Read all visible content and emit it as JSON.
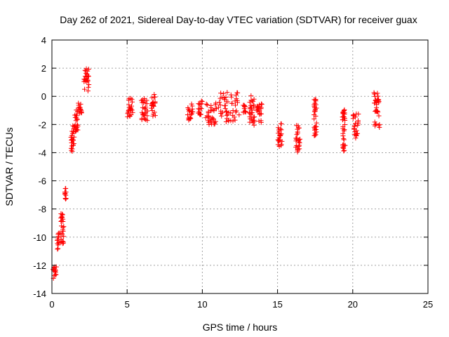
{
  "chart_data": {
    "type": "scatter",
    "title": "Day 262 of 2021, Sidereal Day-to-day VTEC variation (SDTVAR) for receiver guax",
    "xlabel": "GPS time / hours",
    "ylabel": "SDTVAR / TECUs",
    "xlim": [
      0,
      25
    ],
    "ylim": [
      -14,
      4
    ],
    "xticks": [
      0,
      5,
      10,
      15,
      20,
      25
    ],
    "yticks": [
      -14,
      -12,
      -10,
      -8,
      -6,
      -4,
      -2,
      0,
      2,
      4
    ],
    "grid": true,
    "marker": "+",
    "color": "#ff0000",
    "clusters": [
      {
        "x": [
          0.05,
          0.3
        ],
        "y": [
          -13.0,
          -12.0
        ]
      },
      {
        "x": [
          0.35,
          0.5
        ],
        "y": [
          -10.9,
          -9.7
        ]
      },
      {
        "x": [
          0.55,
          0.8
        ],
        "y": [
          -10.6,
          -8.3
        ]
      },
      {
        "x": [
          0.85,
          0.95
        ],
        "y": [
          -7.4,
          -6.5
        ]
      },
      {
        "x": [
          1.25,
          1.5
        ],
        "y": [
          -4.0,
          -2.0
        ]
      },
      {
        "x": [
          1.5,
          1.75
        ],
        "y": [
          -2.5,
          -0.8
        ]
      },
      {
        "x": [
          1.75,
          2.0
        ],
        "y": [
          -1.2,
          -0.3
        ]
      },
      {
        "x": [
          2.1,
          2.5
        ],
        "y": [
          0.3,
          2.0
        ]
      },
      {
        "x": [
          5.0,
          5.4
        ],
        "y": [
          -1.5,
          0.0
        ]
      },
      {
        "x": [
          5.9,
          6.4
        ],
        "y": [
          -1.8,
          -0.1
        ]
      },
      {
        "x": [
          6.6,
          6.9
        ],
        "y": [
          -1.4,
          0.2
        ]
      },
      {
        "x": [
          9.0,
          9.4
        ],
        "y": [
          -1.7,
          -0.4
        ]
      },
      {
        "x": [
          9.7,
          10.0
        ],
        "y": [
          -1.3,
          -0.3
        ]
      },
      {
        "x": [
          10.2,
          11.0
        ],
        "y": [
          -2.0,
          -0.4
        ]
      },
      {
        "x": [
          11.0,
          12.5
        ],
        "y": [
          -1.9,
          0.3
        ]
      },
      {
        "x": [
          12.7,
          12.9
        ],
        "y": [
          -1.2,
          -0.5
        ]
      },
      {
        "x": [
          13.1,
          13.5
        ],
        "y": [
          -2.1,
          0.1
        ]
      },
      {
        "x": [
          13.6,
          14.0
        ],
        "y": [
          -1.9,
          -0.5
        ]
      },
      {
        "x": [
          15.0,
          15.3
        ],
        "y": [
          -3.6,
          -1.8
        ]
      },
      {
        "x": [
          16.2,
          16.5
        ],
        "y": [
          -4.0,
          -2.0
        ]
      },
      {
        "x": [
          17.4,
          17.6
        ],
        "y": [
          -2.8,
          -0.2
        ]
      },
      {
        "x": [
          19.3,
          19.5
        ],
        "y": [
          -3.9,
          -0.9
        ]
      },
      {
        "x": [
          20.0,
          20.4
        ],
        "y": [
          -3.0,
          -1.2
        ]
      },
      {
        "x": [
          21.4,
          21.8
        ],
        "y": [
          -2.3,
          0.3
        ]
      }
    ]
  }
}
